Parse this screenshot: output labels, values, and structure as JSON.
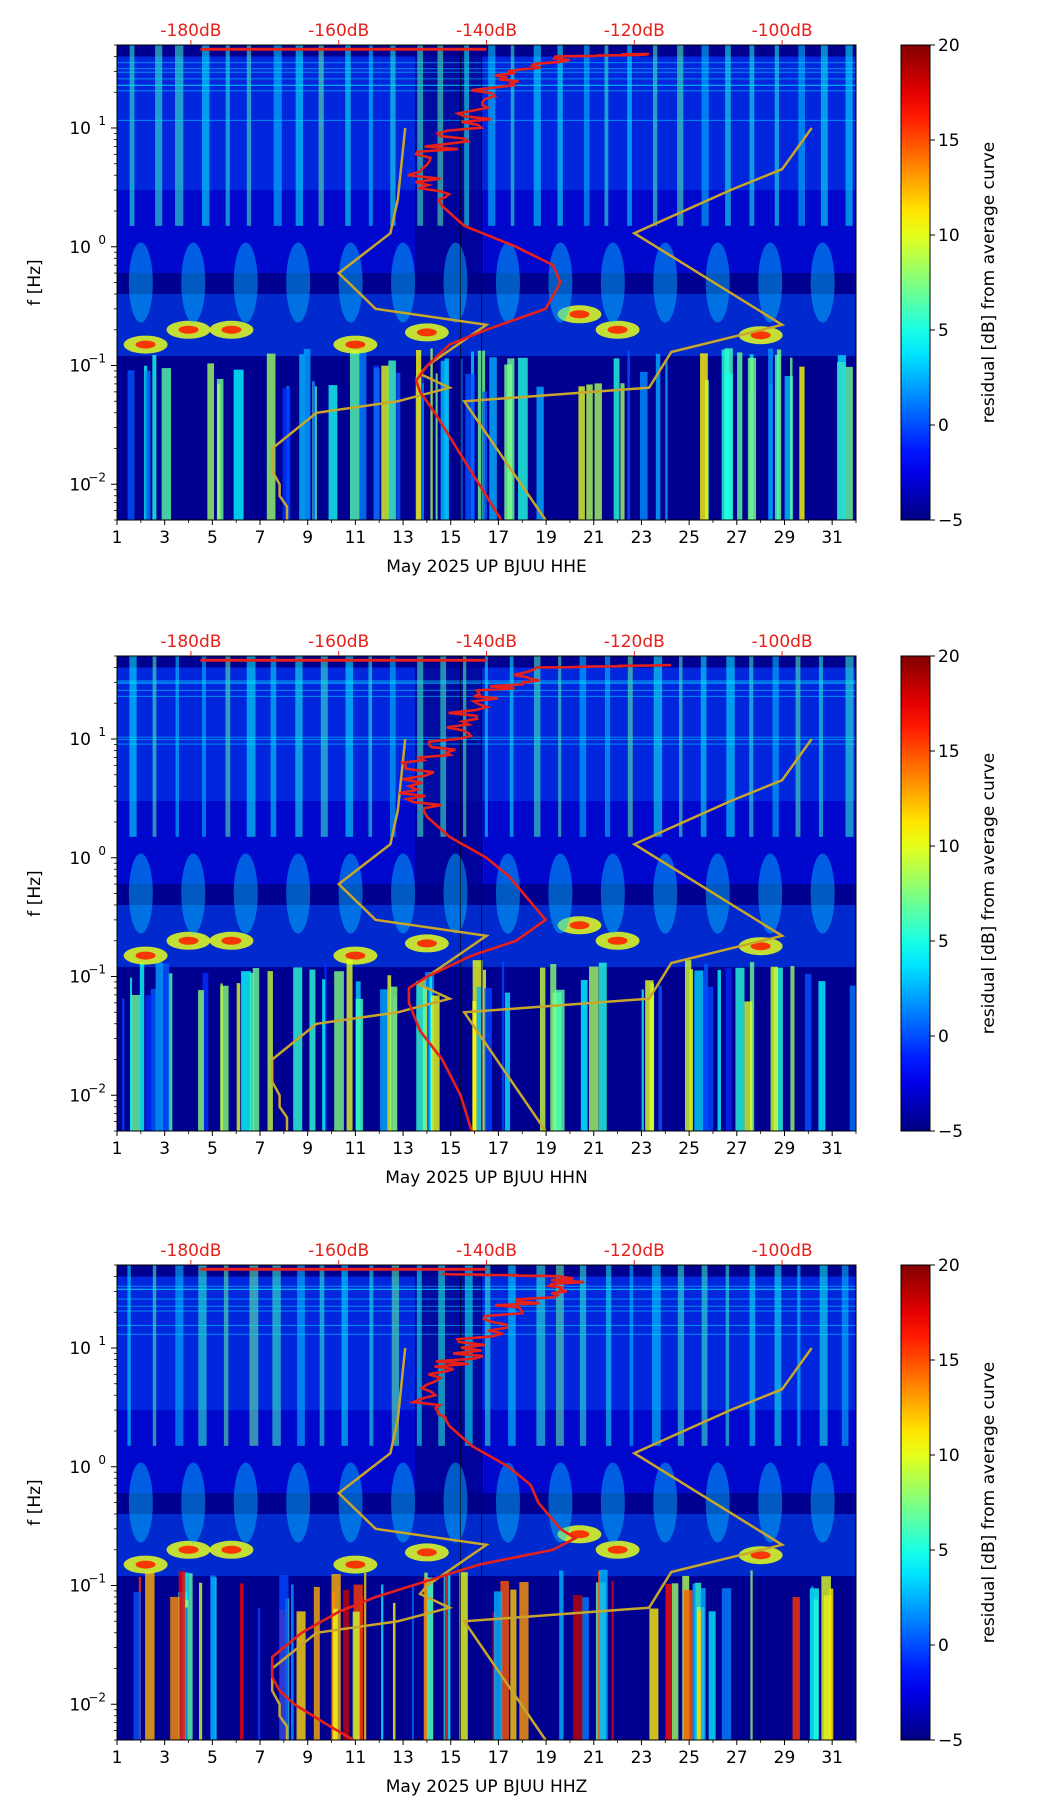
{
  "chart_data": [
    {
      "type": "heatmap",
      "title": "",
      "xlabel": "May 2025 UP BJUU  HHE",
      "ylabel": "f [Hz]",
      "x_ticks": [
        "1",
        "3",
        "5",
        "7",
        "9",
        "11",
        "13",
        "15",
        "17",
        "19",
        "21",
        "23",
        "25",
        "27",
        "29",
        "31"
      ],
      "x_range": [
        1,
        32
      ],
      "y_scale": "log",
      "y_range": [
        0.005,
        50
      ],
      "y_ticks": [
        {
          "base": "10",
          "exp": "1",
          "value": 10
        },
        {
          "base": "10",
          "exp": "0",
          "value": 1
        },
        {
          "base": "10",
          "exp": "−1",
          "value": 0.1
        },
        {
          "base": "10",
          "exp": "−2",
          "value": 0.01
        }
      ],
      "top_ticks": [
        "-180dB",
        "-160dB",
        "-140dB",
        "-120dB",
        "-100dB"
      ],
      "top_range_dB": [
        -190,
        -90
      ],
      "colorbar": {
        "label": "residual [dB] from average curve",
        "min": -5,
        "max": 20,
        "ticks": [
          "20",
          "15",
          "10",
          "5",
          "0",
          "−5"
        ]
      },
      "noise_model_curves": {
        "color": "#c8a62a",
        "low_model": [
          [
            0.005,
            -167
          ],
          [
            0.0065,
            -167
          ],
          [
            0.008,
            -168
          ],
          [
            0.01,
            -168
          ],
          [
            0.013,
            -169
          ],
          [
            0.02,
            -169
          ],
          [
            0.04,
            -163
          ],
          [
            0.05,
            -152
          ],
          [
            0.065,
            -145
          ],
          [
            0.085,
            -149
          ],
          [
            0.1,
            -148
          ],
          [
            0.22,
            -140
          ],
          [
            0.3,
            -155
          ],
          [
            0.6,
            -160
          ],
          [
            1.3,
            -153
          ],
          [
            2.5,
            -152
          ],
          [
            10,
            -151
          ]
        ],
        "high_model": [
          [
            0.005,
            -132
          ],
          [
            0.05,
            -143
          ],
          [
            0.065,
            -118
          ],
          [
            0.13,
            -115
          ],
          [
            0.22,
            -100
          ],
          [
            1.3,
            -120
          ],
          [
            3,
            -107
          ],
          [
            4.5,
            -100
          ],
          [
            10,
            -96
          ]
        ]
      },
      "psd_curve": {
        "color": "#e8201a",
        "points": [
          [
            0.005,
            -138
          ],
          [
            0.01,
            -141
          ],
          [
            0.02,
            -144
          ],
          [
            0.04,
            -147
          ],
          [
            0.06,
            -149
          ],
          [
            0.075,
            -149.5
          ],
          [
            0.1,
            -148
          ],
          [
            0.15,
            -145
          ],
          [
            0.2,
            -140
          ],
          [
            0.3,
            -132
          ],
          [
            0.5,
            -130
          ],
          [
            0.7,
            -131
          ],
          [
            1,
            -136
          ],
          [
            1.5,
            -143
          ],
          [
            2.2,
            -146
          ],
          [
            3.5,
            -148
          ],
          [
            6,
            -147
          ],
          [
            9,
            -144
          ],
          [
            14,
            -141
          ],
          [
            22,
            -139
          ],
          [
            30,
            -136
          ],
          [
            40,
            -130
          ],
          [
            42,
            -118
          ]
        ]
      }
    },
    {
      "type": "heatmap",
      "title": "",
      "xlabel": "May 2025 UP BJUU  HHN",
      "ylabel": "f [Hz]",
      "x_ticks": [
        "1",
        "3",
        "5",
        "7",
        "9",
        "11",
        "13",
        "15",
        "17",
        "19",
        "21",
        "23",
        "25",
        "27",
        "29",
        "31"
      ],
      "x_range": [
        1,
        32
      ],
      "y_scale": "log",
      "y_range": [
        0.005,
        50
      ],
      "y_ticks": [
        {
          "base": "10",
          "exp": "1",
          "value": 10
        },
        {
          "base": "10",
          "exp": "0",
          "value": 1
        },
        {
          "base": "10",
          "exp": "−1",
          "value": 0.1
        },
        {
          "base": "10",
          "exp": "−2",
          "value": 0.01
        }
      ],
      "top_ticks": [
        "-180dB",
        "-160dB",
        "-140dB",
        "-120dB",
        "-100dB"
      ],
      "top_range_dB": [
        -190,
        -90
      ],
      "colorbar": {
        "label": "residual [dB] from average curve",
        "min": -5,
        "max": 20,
        "ticks": [
          "20",
          "15",
          "10",
          "5",
          "0",
          "−5"
        ]
      },
      "noise_model_curves": {
        "color": "#c8a62a",
        "low_model": [
          [
            0.005,
            -167
          ],
          [
            0.0065,
            -167
          ],
          [
            0.008,
            -168
          ],
          [
            0.01,
            -168
          ],
          [
            0.013,
            -169
          ],
          [
            0.02,
            -169
          ],
          [
            0.04,
            -163
          ],
          [
            0.05,
            -152
          ],
          [
            0.065,
            -145
          ],
          [
            0.085,
            -149
          ],
          [
            0.1,
            -148
          ],
          [
            0.22,
            -140
          ],
          [
            0.3,
            -155
          ],
          [
            0.6,
            -160
          ],
          [
            1.3,
            -153
          ],
          [
            2.5,
            -152
          ],
          [
            10,
            -151
          ]
        ],
        "high_model": [
          [
            0.005,
            -132
          ],
          [
            0.05,
            -143
          ],
          [
            0.065,
            -118
          ],
          [
            0.13,
            -115
          ],
          [
            0.22,
            -100
          ],
          [
            1.3,
            -120
          ],
          [
            3,
            -107
          ],
          [
            4.5,
            -100
          ],
          [
            10,
            -96
          ]
        ]
      },
      "psd_curve": {
        "color": "#e8201a",
        "points": [
          [
            0.005,
            -142
          ],
          [
            0.01,
            -143.5
          ],
          [
            0.02,
            -146
          ],
          [
            0.035,
            -149
          ],
          [
            0.06,
            -150.5
          ],
          [
            0.08,
            -150.5
          ],
          [
            0.1,
            -148
          ],
          [
            0.15,
            -142
          ],
          [
            0.2,
            -136
          ],
          [
            0.3,
            -132
          ],
          [
            0.5,
            -135
          ],
          [
            0.7,
            -137
          ],
          [
            1,
            -140
          ],
          [
            1.5,
            -145
          ],
          [
            2.2,
            -148
          ],
          [
            3.5,
            -150
          ],
          [
            6,
            -149
          ],
          [
            9,
            -146
          ],
          [
            14,
            -143
          ],
          [
            22,
            -141
          ],
          [
            30,
            -136
          ],
          [
            40,
            -131
          ],
          [
            42,
            -115
          ]
        ]
      }
    },
    {
      "type": "heatmap",
      "title": "",
      "xlabel": "May 2025 UP BJUU  HHZ",
      "ylabel": "f [Hz]",
      "x_ticks": [
        "1",
        "3",
        "5",
        "7",
        "9",
        "11",
        "13",
        "15",
        "17",
        "19",
        "21",
        "23",
        "25",
        "27",
        "29",
        "31"
      ],
      "x_range": [
        1,
        32
      ],
      "y_scale": "log",
      "y_range": [
        0.005,
        50
      ],
      "y_ticks": [
        {
          "base": "10",
          "exp": "1",
          "value": 10
        },
        {
          "base": "10",
          "exp": "0",
          "value": 1
        },
        {
          "base": "10",
          "exp": "−1",
          "value": 0.1
        },
        {
          "base": "10",
          "exp": "−2",
          "value": 0.01
        }
      ],
      "top_ticks": [
        "-180dB",
        "-160dB",
        "-140dB",
        "-120dB",
        "-100dB"
      ],
      "top_range_dB": [
        -190,
        -90
      ],
      "colorbar": {
        "label": "residual [dB] from average curve",
        "min": -5,
        "max": 20,
        "ticks": [
          "20",
          "15",
          "10",
          "5",
          "0",
          "−5"
        ]
      },
      "noise_model_curves": {
        "color": "#c8a62a",
        "low_model": [
          [
            0.005,
            -167
          ],
          [
            0.0065,
            -167
          ],
          [
            0.008,
            -168
          ],
          [
            0.01,
            -168
          ],
          [
            0.013,
            -169
          ],
          [
            0.02,
            -169
          ],
          [
            0.04,
            -163
          ],
          [
            0.05,
            -152
          ],
          [
            0.065,
            -145
          ],
          [
            0.085,
            -149
          ],
          [
            0.1,
            -148
          ],
          [
            0.22,
            -140
          ],
          [
            0.3,
            -155
          ],
          [
            0.6,
            -160
          ],
          [
            1.3,
            -153
          ],
          [
            2.5,
            -152
          ],
          [
            10,
            -151
          ]
        ],
        "high_model": [
          [
            0.005,
            -132
          ],
          [
            0.05,
            -143
          ],
          [
            0.065,
            -118
          ],
          [
            0.13,
            -115
          ],
          [
            0.22,
            -100
          ],
          [
            1.3,
            -120
          ],
          [
            3,
            -107
          ],
          [
            4.5,
            -100
          ],
          [
            10,
            -96
          ]
        ]
      },
      "psd_curve": {
        "color": "#e8201a",
        "points": [
          [
            0.005,
            -158
          ],
          [
            0.007,
            -162
          ],
          [
            0.01,
            -166
          ],
          [
            0.013,
            -168
          ],
          [
            0.017,
            -169
          ],
          [
            0.025,
            -169
          ],
          [
            0.04,
            -165
          ],
          [
            0.06,
            -160
          ],
          [
            0.08,
            -155
          ],
          [
            0.1,
            -150
          ],
          [
            0.15,
            -141
          ],
          [
            0.2,
            -131
          ],
          [
            0.25,
            -128
          ],
          [
            0.3,
            -130
          ],
          [
            0.5,
            -133
          ],
          [
            0.7,
            -134
          ],
          [
            1,
            -137
          ],
          [
            1.5,
            -142
          ],
          [
            2.2,
            -145
          ],
          [
            3.5,
            -147
          ],
          [
            6,
            -146
          ],
          [
            9,
            -143
          ],
          [
            14,
            -140
          ],
          [
            22,
            -137
          ],
          [
            30,
            -132
          ],
          [
            40,
            -128
          ],
          [
            42,
            -146
          ]
        ]
      }
    }
  ]
}
